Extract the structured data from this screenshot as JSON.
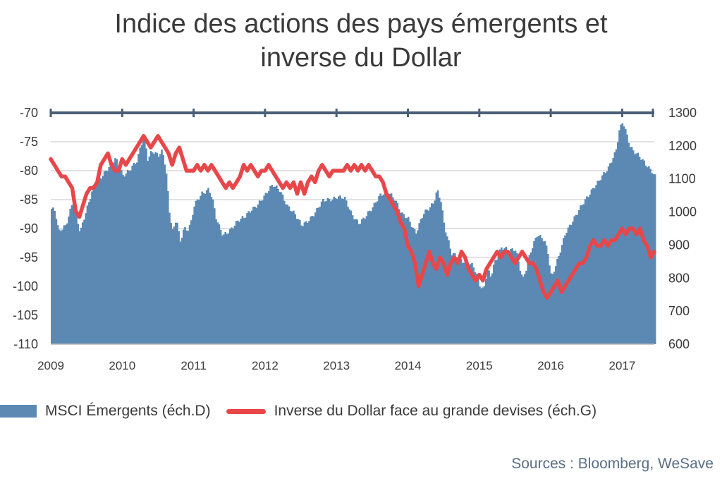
{
  "title_line1": "Indice des actions des pays émergents et",
  "title_line2": "inverse du Dollar",
  "source": "Sources : Bloomberg, WeSave",
  "chart_data": {
    "type": "bar+line",
    "title": "Indice des actions des pays émergents et inverse du Dollar",
    "x_ticks": [
      "2009",
      "2010",
      "2011",
      "2012",
      "2013",
      "2014",
      "2015",
      "2016",
      "2017"
    ],
    "x_range": [
      2009.0,
      2017.45
    ],
    "left_axis": {
      "ticks": [
        -70,
        -75,
        -80,
        -85,
        -90,
        -95,
        -100,
        -105,
        -110
      ],
      "range": [
        -110,
        -70
      ]
    },
    "right_axis": {
      "ticks": [
        1300,
        1200,
        1100,
        1000,
        900,
        800,
        700,
        600
      ],
      "range": [
        600,
        1300
      ]
    },
    "grid": true,
    "legend_position": "bottom",
    "series": [
      {
        "name": "MSCI Émergents (éch.D)",
        "type": "area-bars",
        "axis": "right",
        "color": "#5b89b4",
        "points": [
          [
            2009.0,
            1010
          ],
          [
            2009.05,
            1000
          ],
          [
            2009.1,
            935
          ],
          [
            2009.2,
            960
          ],
          [
            2009.3,
            1040
          ],
          [
            2009.4,
            935
          ],
          [
            2009.5,
            1010
          ],
          [
            2009.6,
            1090
          ],
          [
            2009.7,
            1110
          ],
          [
            2009.8,
            1130
          ],
          [
            2009.9,
            1160
          ],
          [
            2010.0,
            1115
          ],
          [
            2010.1,
            1130
          ],
          [
            2010.2,
            1150
          ],
          [
            2010.25,
            1200
          ],
          [
            2010.3,
            1230
          ],
          [
            2010.35,
            1160
          ],
          [
            2010.4,
            1190
          ],
          [
            2010.5,
            1170
          ],
          [
            2010.55,
            1180
          ],
          [
            2010.6,
            1130
          ],
          [
            2010.65,
            1000
          ],
          [
            2010.7,
            940
          ],
          [
            2010.75,
            990
          ],
          [
            2010.8,
            910
          ],
          [
            2010.85,
            950
          ],
          [
            2010.9,
            940
          ],
          [
            2010.95,
            960
          ],
          [
            2011.0,
            1020
          ],
          [
            2011.1,
            1060
          ],
          [
            2011.2,
            1070
          ],
          [
            2011.25,
            1040
          ],
          [
            2011.3,
            980
          ],
          [
            2011.35,
            950
          ],
          [
            2011.4,
            930
          ],
          [
            2011.5,
            950
          ],
          [
            2011.6,
            970
          ],
          [
            2011.7,
            980
          ],
          [
            2011.8,
            1010
          ],
          [
            2011.9,
            1030
          ],
          [
            2012.0,
            1050
          ],
          [
            2012.1,
            1080
          ],
          [
            2012.2,
            1070
          ],
          [
            2012.3,
            1020
          ],
          [
            2012.4,
            990
          ],
          [
            2012.5,
            960
          ],
          [
            2012.6,
            980
          ],
          [
            2012.7,
            1000
          ],
          [
            2012.8,
            1030
          ],
          [
            2012.9,
            1040
          ],
          [
            2013.0,
            1050
          ],
          [
            2013.1,
            1040
          ],
          [
            2013.2,
            990
          ],
          [
            2013.3,
            970
          ],
          [
            2013.4,
            990
          ],
          [
            2013.5,
            1010
          ],
          [
            2013.6,
            1050
          ],
          [
            2013.7,
            1070
          ],
          [
            2013.8,
            1040
          ],
          [
            2013.9,
            990
          ],
          [
            2014.0,
            980
          ],
          [
            2014.05,
            960
          ],
          [
            2014.1,
            940
          ],
          [
            2014.2,
            990
          ],
          [
            2014.3,
            1010
          ],
          [
            2014.35,
            1030
          ],
          [
            2014.4,
            1070
          ],
          [
            2014.45,
            1040
          ],
          [
            2014.5,
            960
          ],
          [
            2014.6,
            870
          ],
          [
            2014.7,
            860
          ],
          [
            2014.8,
            850
          ],
          [
            2014.9,
            840
          ],
          [
            2015.0,
            770
          ],
          [
            2015.05,
            760
          ],
          [
            2015.1,
            830
          ],
          [
            2015.15,
            810
          ],
          [
            2015.2,
            850
          ],
          [
            2015.3,
            890
          ],
          [
            2015.4,
            880
          ],
          [
            2015.5,
            890
          ],
          [
            2015.55,
            840
          ],
          [
            2015.6,
            800
          ],
          [
            2015.65,
            830
          ],
          [
            2015.7,
            870
          ],
          [
            2015.8,
            930
          ],
          [
            2015.9,
            920
          ],
          [
            2015.95,
            880
          ],
          [
            2016.0,
            800
          ],
          [
            2016.1,
            860
          ],
          [
            2016.2,
            940
          ],
          [
            2016.3,
            980
          ],
          [
            2016.4,
            1010
          ],
          [
            2016.5,
            1040
          ],
          [
            2016.6,
            1080
          ],
          [
            2016.7,
            1110
          ],
          [
            2016.8,
            1130
          ],
          [
            2016.9,
            1180
          ],
          [
            2016.95,
            1250
          ],
          [
            2017.0,
            1280
          ],
          [
            2017.05,
            1240
          ],
          [
            2017.1,
            1200
          ],
          [
            2017.15,
            1180
          ],
          [
            2017.2,
            1170
          ],
          [
            2017.3,
            1150
          ],
          [
            2017.35,
            1140
          ],
          [
            2017.4,
            1130
          ],
          [
            2017.45,
            1110
          ]
        ]
      },
      {
        "name": "Inverse du Dollar face au grande devises (éch.G)",
        "type": "line",
        "axis": "left",
        "color": "#e8474a",
        "points": [
          [
            2009.0,
            -78
          ],
          [
            2009.05,
            -79
          ],
          [
            2009.1,
            -80
          ],
          [
            2009.15,
            -81
          ],
          [
            2009.2,
            -81
          ],
          [
            2009.25,
            -82
          ],
          [
            2009.3,
            -83
          ],
          [
            2009.35,
            -87
          ],
          [
            2009.4,
            -88
          ],
          [
            2009.45,
            -86
          ],
          [
            2009.5,
            -84
          ],
          [
            2009.55,
            -83
          ],
          [
            2009.6,
            -83
          ],
          [
            2009.65,
            -82
          ],
          [
            2009.7,
            -79
          ],
          [
            2009.75,
            -78
          ],
          [
            2009.8,
            -77
          ],
          [
            2009.85,
            -79
          ],
          [
            2009.9,
            -80
          ],
          [
            2009.95,
            -80
          ],
          [
            2010.0,
            -78
          ],
          [
            2010.05,
            -79
          ],
          [
            2010.1,
            -78
          ],
          [
            2010.15,
            -77
          ],
          [
            2010.2,
            -76
          ],
          [
            2010.25,
            -75
          ],
          [
            2010.3,
            -74
          ],
          [
            2010.35,
            -75
          ],
          [
            2010.4,
            -76
          ],
          [
            2010.45,
            -75
          ],
          [
            2010.5,
            -74
          ],
          [
            2010.55,
            -75
          ],
          [
            2010.6,
            -76
          ],
          [
            2010.65,
            -77
          ],
          [
            2010.7,
            -79
          ],
          [
            2010.75,
            -77
          ],
          [
            2010.8,
            -76
          ],
          [
            2010.85,
            -78
          ],
          [
            2010.9,
            -80
          ],
          [
            2011.0,
            -80
          ],
          [
            2011.05,
            -79
          ],
          [
            2011.1,
            -80
          ],
          [
            2011.15,
            -79
          ],
          [
            2011.2,
            -80
          ],
          [
            2011.25,
            -79
          ],
          [
            2011.3,
            -80
          ],
          [
            2011.35,
            -81
          ],
          [
            2011.4,
            -82
          ],
          [
            2011.45,
            -83
          ],
          [
            2011.5,
            -82
          ],
          [
            2011.55,
            -83
          ],
          [
            2011.6,
            -82
          ],
          [
            2011.65,
            -81
          ],
          [
            2011.7,
            -79
          ],
          [
            2011.75,
            -80
          ],
          [
            2011.8,
            -79
          ],
          [
            2011.85,
            -80
          ],
          [
            2011.9,
            -81
          ],
          [
            2011.95,
            -80
          ],
          [
            2012.0,
            -80
          ],
          [
            2012.05,
            -79
          ],
          [
            2012.1,
            -80
          ],
          [
            2012.15,
            -81
          ],
          [
            2012.2,
            -82
          ],
          [
            2012.25,
            -83
          ],
          [
            2012.3,
            -82
          ],
          [
            2012.35,
            -83
          ],
          [
            2012.4,
            -82
          ],
          [
            2012.45,
            -84
          ],
          [
            2012.5,
            -82
          ],
          [
            2012.55,
            -84
          ],
          [
            2012.6,
            -82
          ],
          [
            2012.65,
            -81
          ],
          [
            2012.7,
            -82
          ],
          [
            2012.75,
            -80
          ],
          [
            2012.8,
            -79
          ],
          [
            2012.85,
            -80
          ],
          [
            2012.9,
            -81
          ],
          [
            2012.95,
            -80
          ],
          [
            2013.0,
            -80
          ],
          [
            2013.1,
            -80
          ],
          [
            2013.15,
            -79
          ],
          [
            2013.2,
            -80
          ],
          [
            2013.25,
            -79
          ],
          [
            2013.3,
            -80
          ],
          [
            2013.35,
            -79
          ],
          [
            2013.4,
            -80
          ],
          [
            2013.45,
            -79
          ],
          [
            2013.5,
            -80
          ],
          [
            2013.55,
            -81
          ],
          [
            2013.6,
            -81
          ],
          [
            2013.65,
            -82
          ],
          [
            2013.7,
            -84
          ],
          [
            2013.75,
            -85
          ],
          [
            2013.8,
            -86
          ],
          [
            2013.85,
            -87
          ],
          [
            2013.9,
            -89
          ],
          [
            2013.95,
            -90
          ],
          [
            2014.0,
            -93
          ],
          [
            2014.05,
            -94
          ],
          [
            2014.1,
            -96
          ],
          [
            2014.15,
            -100
          ],
          [
            2014.2,
            -98
          ],
          [
            2014.25,
            -96
          ],
          [
            2014.3,
            -94
          ],
          [
            2014.35,
            -96
          ],
          [
            2014.4,
            -97
          ],
          [
            2014.45,
            -95
          ],
          [
            2014.5,
            -96
          ],
          [
            2014.55,
            -98
          ],
          [
            2014.6,
            -96
          ],
          [
            2014.65,
            -95
          ],
          [
            2014.7,
            -96
          ],
          [
            2014.75,
            -94
          ],
          [
            2014.8,
            -95
          ],
          [
            2014.85,
            -97
          ],
          [
            2014.9,
            -98
          ],
          [
            2014.95,
            -99
          ],
          [
            2015.0,
            -98
          ],
          [
            2015.05,
            -99
          ],
          [
            2015.1,
            -97
          ],
          [
            2015.15,
            -96
          ],
          [
            2015.2,
            -95
          ],
          [
            2015.25,
            -94
          ],
          [
            2015.3,
            -95
          ],
          [
            2015.35,
            -94
          ],
          [
            2015.4,
            -94
          ],
          [
            2015.45,
            -95
          ],
          [
            2015.5,
            -96
          ],
          [
            2015.55,
            -95
          ],
          [
            2015.6,
            -94
          ],
          [
            2015.65,
            -95
          ],
          [
            2015.7,
            -96
          ],
          [
            2015.75,
            -96
          ],
          [
            2015.8,
            -97
          ],
          [
            2015.85,
            -99
          ],
          [
            2015.9,
            -101
          ],
          [
            2015.95,
            -102
          ],
          [
            2016.0,
            -101
          ],
          [
            2016.05,
            -100
          ],
          [
            2016.1,
            -99
          ],
          [
            2016.15,
            -101
          ],
          [
            2016.2,
            -100
          ],
          [
            2016.25,
            -99
          ],
          [
            2016.3,
            -98
          ],
          [
            2016.35,
            -97
          ],
          [
            2016.4,
            -96
          ],
          [
            2016.45,
            -96
          ],
          [
            2016.5,
            -95
          ],
          [
            2016.55,
            -93
          ],
          [
            2016.6,
            -92
          ],
          [
            2016.65,
            -93
          ],
          [
            2016.7,
            -93
          ],
          [
            2016.75,
            -92
          ],
          [
            2016.8,
            -93
          ],
          [
            2016.85,
            -92
          ],
          [
            2016.9,
            -92
          ],
          [
            2016.95,
            -91
          ],
          [
            2017.0,
            -90
          ],
          [
            2017.05,
            -91
          ],
          [
            2017.1,
            -90
          ],
          [
            2017.15,
            -90
          ],
          [
            2017.2,
            -91
          ],
          [
            2017.25,
            -90
          ],
          [
            2017.3,
            -92
          ],
          [
            2017.35,
            -93
          ],
          [
            2017.4,
            -95
          ],
          [
            2017.45,
            -94
          ]
        ]
      }
    ]
  }
}
